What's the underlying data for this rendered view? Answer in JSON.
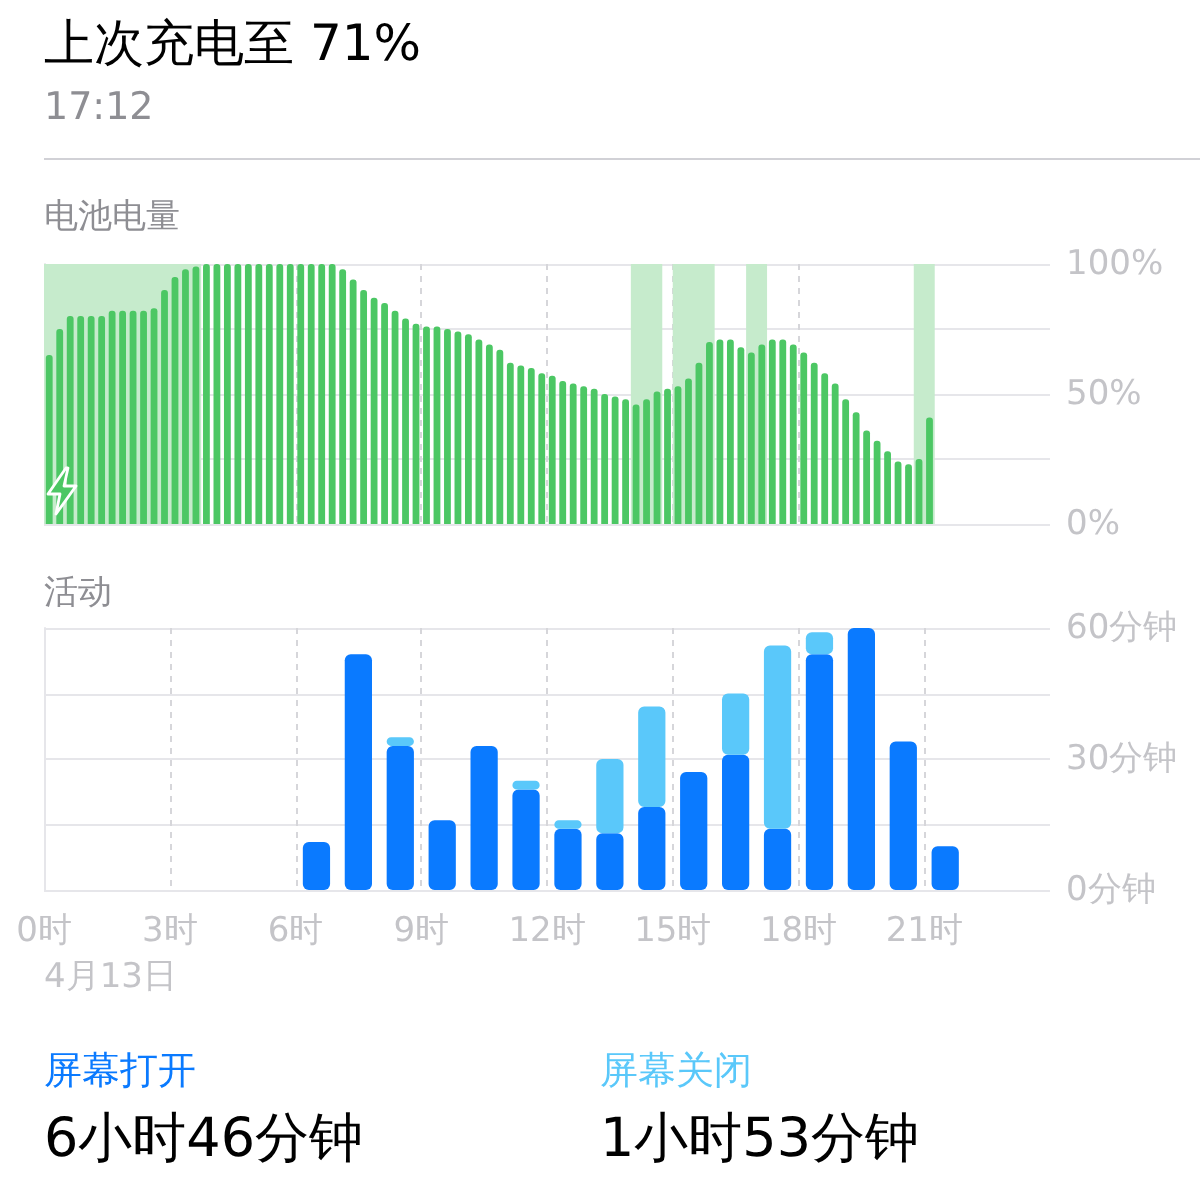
{
  "chart_data": [
    {
      "type": "bar",
      "title": "电池电量",
      "annotations": [
        "上次充电至 71%",
        "17:12"
      ],
      "x": [
        0.125,
        0.375,
        0.625,
        0.875,
        1.125,
        1.375,
        1.625,
        1.875,
        2.125,
        2.375,
        2.625,
        2.875,
        3.125,
        3.375,
        3.625,
        3.875,
        4.125,
        4.375,
        4.625,
        4.875,
        5.125,
        5.375,
        5.625,
        5.875,
        6.125,
        6.375,
        6.625,
        6.875,
        7.125,
        7.375,
        7.625,
        7.875,
        8.125,
        8.375,
        8.625,
        8.875,
        9.125,
        9.375,
        9.625,
        9.875,
        10.125,
        10.375,
        10.625,
        10.875,
        11.125,
        11.375,
        11.625,
        11.875,
        12.125,
        12.375,
        12.625,
        12.875,
        13.125,
        13.375,
        13.625,
        13.875,
        14.125,
        14.375,
        14.625,
        14.875,
        15.125,
        15.375,
        15.625,
        15.875,
        16.125,
        16.375,
        16.625,
        16.875,
        17.125,
        17.375,
        17.625,
        17.875,
        18.125,
        18.375,
        18.625,
        18.875,
        19.125,
        19.375,
        19.625,
        19.875,
        20.125,
        20.375,
        20.625,
        20.875,
        21.125
      ],
      "values": [
        65,
        75,
        80,
        80,
        80,
        80,
        82,
        82,
        82,
        82,
        83,
        90,
        95,
        98,
        99,
        100,
        100,
        100,
        100,
        100,
        100,
        100,
        100,
        100,
        100,
        100,
        100,
        100,
        98,
        94,
        90,
        87,
        85,
        82,
        79,
        77,
        76,
        76,
        75,
        74,
        73,
        71,
        69,
        67,
        62,
        61,
        60,
        58,
        57,
        55,
        54,
        53,
        52,
        50,
        49,
        48,
        46,
        48,
        51,
        52,
        53,
        56,
        62,
        70,
        71,
        71,
        68,
        66,
        69,
        71,
        71,
        69,
        66,
        62,
        58,
        54,
        48,
        43,
        36,
        32,
        28,
        24,
        23,
        25,
        41
      ],
      "color": "#4cc764",
      "xlim": [
        0,
        24
      ],
      "xticks": [
        0,
        3,
        6,
        9,
        12,
        15,
        18,
        21
      ],
      "ylim": [
        0,
        100
      ],
      "yticks": [
        {
          "value": 0,
          "label": "0%"
        },
        {
          "value": 25,
          "label": null
        },
        {
          "value": 50,
          "label": "50%"
        },
        {
          "value": 75,
          "label": null
        },
        {
          "value": 100,
          "label": "100%"
        }
      ],
      "tick_labels": "y",
      "grid": true,
      "bands": [
        {
          "axis": "x",
          "from": 0,
          "to": 3.75,
          "color": "#c6ebcc"
        },
        {
          "axis": "x",
          "from": 14,
          "to": 14.75,
          "color": "#c6ebcc"
        },
        {
          "axis": "x",
          "from": 15,
          "to": 16,
          "color": "#c6ebcc"
        },
        {
          "axis": "x",
          "from": 16.75,
          "to": 17.25,
          "color": "#c6ebcc"
        },
        {
          "axis": "x",
          "from": 20.75,
          "to": 21.25,
          "color": "#c6ebcc"
        }
      ]
    },
    {
      "type": "bar",
      "title": "活动",
      "stacked": true,
      "x": [
        6.5,
        7.5,
        8.5,
        9.5,
        10.5,
        11.5,
        12.5,
        13.5,
        14.5,
        15.5,
        16.5,
        17.5,
        18.5,
        19.5,
        20.5,
        21.5
      ],
      "series": [
        {
          "name": "屏幕打开",
          "color": "#0a7aff",
          "values": [
            11,
            54,
            33,
            16,
            33,
            23,
            14,
            13,
            19,
            27,
            31,
            14,
            54,
            60,
            34,
            10
          ]
        },
        {
          "name": "屏幕关闭",
          "color": "#5ac8fa",
          "values": [
            null,
            null,
            2,
            null,
            null,
            2,
            2,
            17,
            23,
            null,
            14,
            42,
            5,
            null,
            null,
            null
          ]
        }
      ],
      "xlim": [
        0,
        24
      ],
      "xticks": [
        {
          "value": 0,
          "label": "0时"
        },
        {
          "value": 3,
          "label": "3时"
        },
        {
          "value": 6,
          "label": "6时"
        },
        {
          "value": 9,
          "label": "9时"
        },
        {
          "value": 12,
          "label": "12时"
        },
        {
          "value": 15,
          "label": "15时"
        },
        {
          "value": 18,
          "label": "18时"
        },
        {
          "value": 21,
          "label": "21时"
        }
      ],
      "ylim": [
        0,
        60
      ],
      "yticks": [
        {
          "value": 0,
          "label": "0分钟"
        },
        {
          "value": 15,
          "label": null
        },
        {
          "value": 30,
          "label": "30分钟"
        },
        {
          "value": 45,
          "label": null
        },
        {
          "value": 60,
          "label": "60分钟"
        }
      ],
      "grid": true,
      "legend": "bottom",
      "annotations": [
        "4月13日",
        "6小时46分钟",
        "1小时53分钟"
      ]
    }
  ]
}
